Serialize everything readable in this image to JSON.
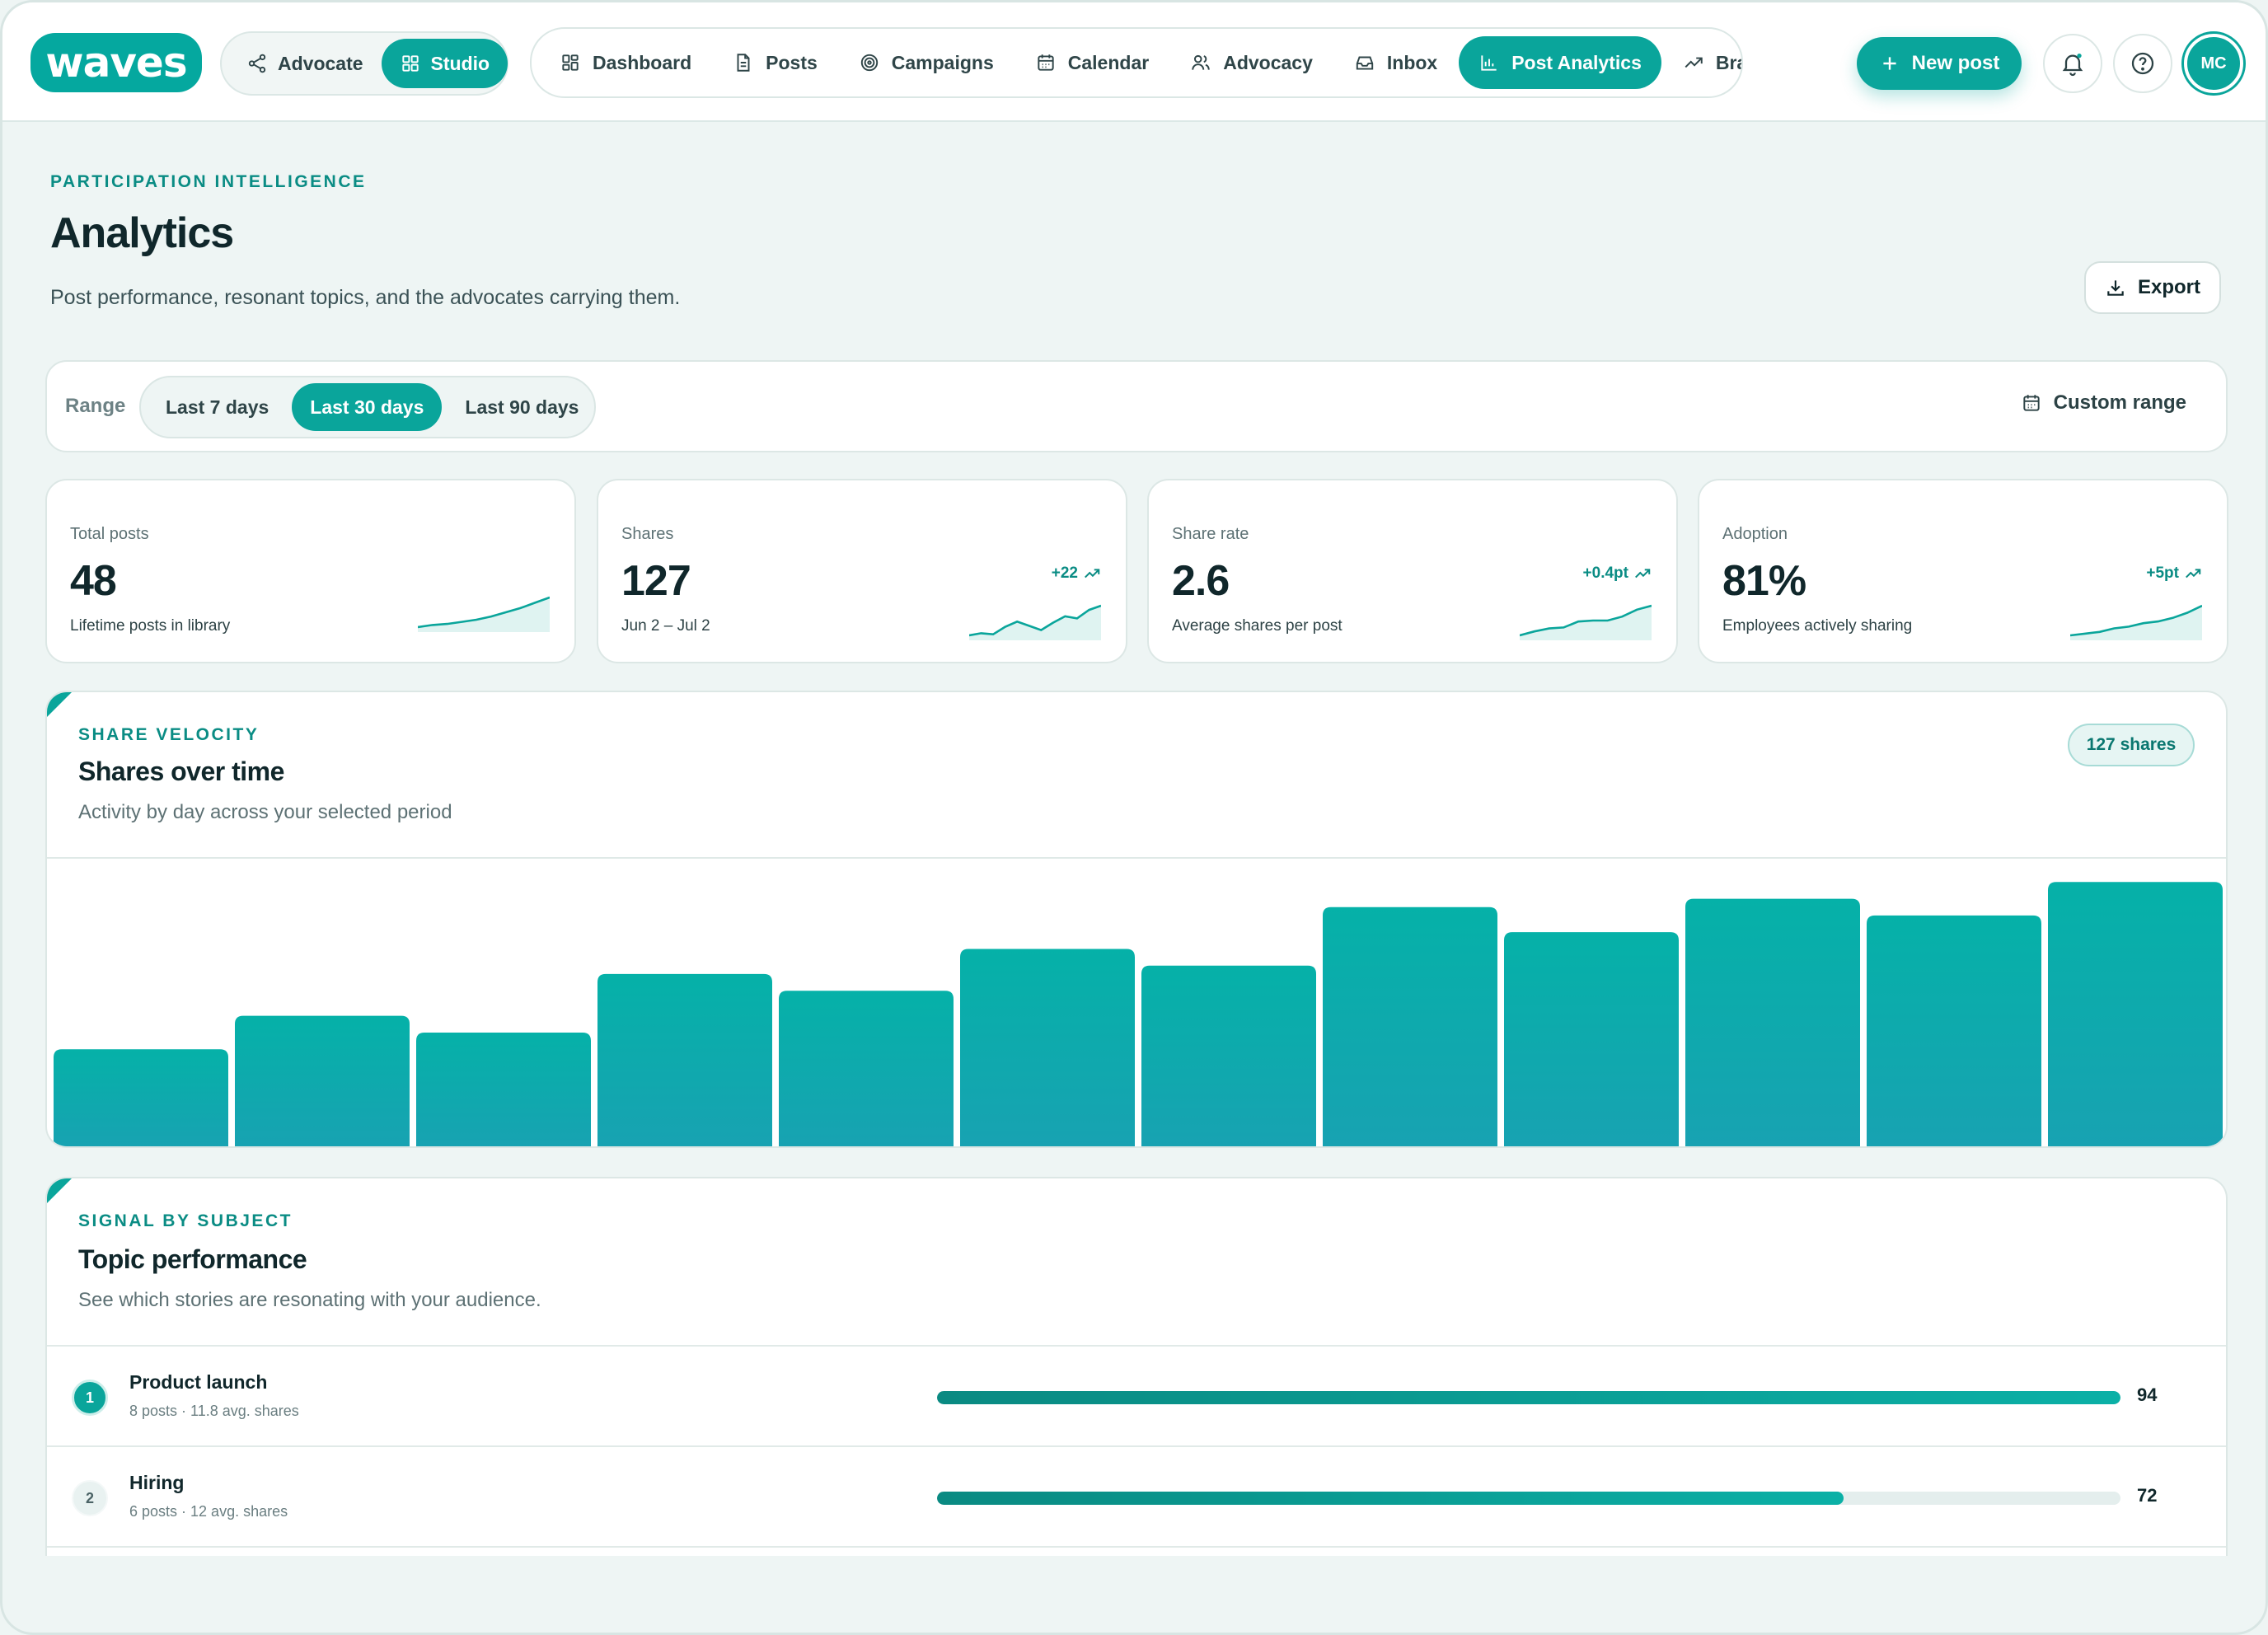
{
  "brand": {
    "logo": "waves",
    "accent": "#0aa59b"
  },
  "mode_switch": [
    {
      "label": "Advocate",
      "icon": "share-icon",
      "active": false
    },
    {
      "label": "Studio",
      "icon": "grid-icon",
      "active": true
    }
  ],
  "nav": [
    {
      "label": "Dashboard",
      "icon": "grid-icon",
      "active": false
    },
    {
      "label": "Posts",
      "icon": "document-icon",
      "active": false
    },
    {
      "label": "Campaigns",
      "icon": "target-icon",
      "active": false
    },
    {
      "label": "Calendar",
      "icon": "calendar-icon",
      "active": false
    },
    {
      "label": "Advocacy",
      "icon": "users-icon",
      "active": false
    },
    {
      "label": "Inbox",
      "icon": "inbox-icon",
      "active": false
    },
    {
      "label": "Post Analytics",
      "icon": "bar-chart-icon",
      "active": true
    },
    {
      "label": "Brar",
      "icon": "trend-up-icon",
      "active": false
    }
  ],
  "actions": {
    "new_post": "New post",
    "avatar_initials": "MC"
  },
  "header": {
    "eyebrow": "PARTICIPATION INTELLIGENCE",
    "title": "Analytics",
    "subtitle": "Post performance, resonant topics, and the advocates carrying them.",
    "export": "Export"
  },
  "range": {
    "label": "Range",
    "options": [
      "Last 7 days",
      "Last 30 days",
      "Last 90 days"
    ],
    "selected": "Last 30 days",
    "custom": "Custom range"
  },
  "stats": [
    {
      "label": "Total posts",
      "value": "48",
      "note": "Lifetime posts in library",
      "delta": "",
      "trend": [
        10,
        12,
        13,
        15,
        17,
        20,
        24,
        28,
        33,
        38
      ]
    },
    {
      "label": "Shares",
      "value": "127",
      "note": "Jun 2 – Jul 2",
      "delta": "+22",
      "trend": [
        12,
        14,
        13,
        20,
        25,
        21,
        17,
        24,
        30,
        28,
        36,
        40
      ]
    },
    {
      "label": "Share rate",
      "value": "2.6",
      "note": "Average shares per post",
      "delta": "+0.4pt",
      "trend": [
        10,
        14,
        17,
        18,
        24,
        25,
        25,
        29,
        36,
        40
      ]
    },
    {
      "label": "Adoption",
      "value": "81%",
      "note": "Employees actively sharing",
      "delta": "+5pt",
      "trend": [
        20,
        21,
        22,
        24,
        25,
        27,
        28,
        30,
        33,
        37
      ]
    }
  ],
  "velocity": {
    "eyebrow": "SHARE VELOCITY",
    "title": "Shares over time",
    "subtitle": "Activity by day across your selected period",
    "badge": "127 shares"
  },
  "chart_data": {
    "type": "bar",
    "title": "Shares over time",
    "values": [
      6,
      8,
      7,
      10.5,
      9.5,
      12,
      11,
      14.5,
      13,
      15,
      14,
      16
    ],
    "ylim": [
      0,
      17
    ]
  },
  "topics": {
    "eyebrow": "SIGNAL BY SUBJECT",
    "title": "Topic performance",
    "subtitle": "See which stories are resonating with your audience.",
    "items": [
      {
        "rank": "1",
        "name": "Product launch",
        "meta": "8 posts · 11.8 avg. shares",
        "score": "94",
        "fill": 1.0
      },
      {
        "rank": "2",
        "name": "Hiring",
        "meta": "6 posts · 12 avg. shares",
        "score": "72",
        "fill": 0.766
      }
    ]
  }
}
